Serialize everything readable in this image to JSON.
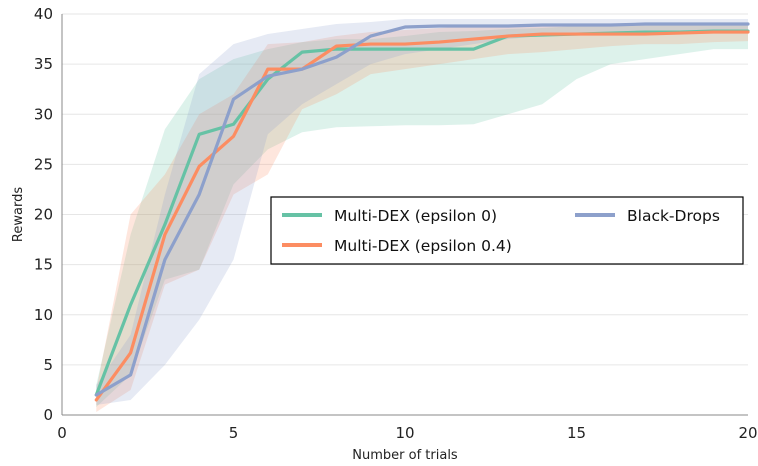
{
  "chart_data": {
    "type": "line",
    "title": "",
    "xlabel": "Number of trials",
    "ylabel": "Rewards",
    "xlim": [
      0,
      20
    ],
    "ylim": [
      0,
      40
    ],
    "xticks": [
      "0",
      "5",
      "10",
      "15",
      "20"
    ],
    "yticks": [
      "0",
      "5",
      "10",
      "15",
      "20",
      "25",
      "30",
      "35",
      "40"
    ],
    "grid": "horizontal",
    "legend_position": "center-right",
    "x": [
      1,
      2,
      3,
      4,
      5,
      6,
      7,
      8,
      9,
      10,
      11,
      12,
      13,
      14,
      15,
      16,
      17,
      18,
      19,
      20
    ],
    "series": [
      {
        "name": "Multi-DEX (epsilon 0)",
        "color": "#66c2a5",
        "values": [
          2.0,
          11.0,
          19.0,
          28.0,
          29.0,
          33.5,
          36.2,
          36.5,
          36.5,
          36.5,
          36.5,
          36.5,
          37.8,
          37.9,
          38.0,
          38.1,
          38.2,
          38.2,
          38.3,
          38.3
        ],
        "band_lower": [
          0.8,
          4.0,
          13.5,
          14.5,
          23.0,
          26.5,
          28.2,
          28.7,
          28.8,
          28.9,
          28.9,
          29.0,
          30.0,
          31.0,
          33.5,
          35.0,
          35.5,
          36.0,
          36.5,
          36.5
        ],
        "band_upper": [
          3.0,
          18.0,
          28.5,
          33.5,
          35.5,
          36.5,
          37.2,
          37.5,
          37.5,
          37.8,
          38.2,
          38.3,
          38.5,
          38.6,
          38.8,
          38.9,
          39.0,
          39.0,
          39.0,
          39.0
        ]
      },
      {
        "name": "Multi-DEX (epsilon 0.4)",
        "color": "#fc8d62",
        "values": [
          1.5,
          6.2,
          18.0,
          24.8,
          27.8,
          34.5,
          34.5,
          36.8,
          37.0,
          37.0,
          37.2,
          37.5,
          37.8,
          38.0,
          38.0,
          38.0,
          38.0,
          38.1,
          38.2,
          38.2
        ],
        "band_lower": [
          0.3,
          2.5,
          13.0,
          14.5,
          22.0,
          24.0,
          30.5,
          32.0,
          34.0,
          34.5,
          35.0,
          35.5,
          36.0,
          36.2,
          36.5,
          36.8,
          37.0,
          37.0,
          37.2,
          37.3
        ],
        "band_upper": [
          2.5,
          20.0,
          24.0,
          30.0,
          32.0,
          37.0,
          37.2,
          37.8,
          38.2,
          38.4,
          38.6,
          38.8,
          38.8,
          38.9,
          38.9,
          39.0,
          39.0,
          39.0,
          39.0,
          39.0
        ]
      },
      {
        "name": "Black-Drops",
        "color": "#8da0cb",
        "values": [
          2.0,
          4.0,
          15.5,
          22.0,
          31.5,
          33.8,
          34.5,
          35.7,
          37.8,
          38.7,
          38.8,
          38.8,
          38.8,
          38.9,
          38.9,
          38.9,
          39.0,
          39.0,
          39.0,
          39.0
        ],
        "band_lower": [
          1.0,
          1.5,
          5.0,
          9.5,
          15.5,
          28.0,
          31.0,
          33.0,
          35.0,
          36.0,
          36.5,
          37.0,
          37.5,
          37.8,
          38.0,
          38.0,
          38.0,
          38.2,
          38.3,
          38.3
        ],
        "band_upper": [
          3.0,
          8.0,
          22.0,
          34.0,
          37.0,
          38.0,
          38.5,
          39.0,
          39.2,
          39.5,
          39.5,
          39.5,
          39.5,
          39.5,
          39.5,
          39.5,
          39.5,
          39.5,
          39.5,
          39.5
        ]
      }
    ]
  }
}
